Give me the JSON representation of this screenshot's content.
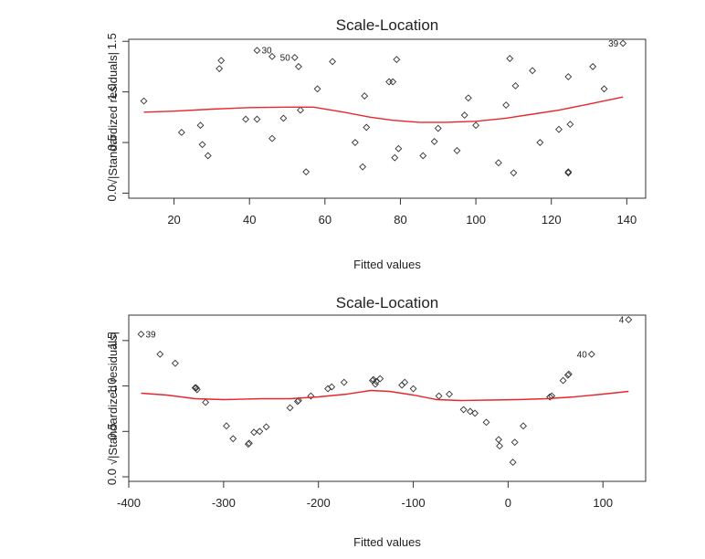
{
  "chart_data": [
    {
      "type": "scatter",
      "title": "Scale-Location",
      "xlabel": "Fitted values",
      "ylabel": "√|Standardized residuals|",
      "xlim": [
        8,
        145
      ],
      "ylim": [
        -0.05,
        1.52
      ],
      "xticks": [
        20,
        40,
        60,
        80,
        100,
        120,
        140
      ],
      "yticks": [
        0.0,
        0.5,
        1.0,
        1.5
      ],
      "xtick_labels": [
        "20",
        "40",
        "60",
        "80",
        "100",
        "120",
        "140"
      ],
      "ytick_labels": [
        "0.0",
        "0.5",
        "1.0",
        "1.5"
      ],
      "colors": {
        "points": "#333333",
        "smooth": "#e8262b",
        "axis": "#333333"
      },
      "points": [
        [
          12,
          0.91
        ],
        [
          22,
          0.6
        ],
        [
          27,
          0.67
        ],
        [
          27.5,
          0.48
        ],
        [
          29,
          0.37
        ],
        [
          32,
          1.23
        ],
        [
          32.5,
          1.31
        ],
        [
          39,
          0.73
        ],
        [
          42,
          0.73
        ],
        [
          42,
          1.41
        ],
        [
          46,
          1.35
        ],
        [
          46,
          0.54
        ],
        [
          49,
          0.74
        ],
        [
          52,
          1.34
        ],
        [
          53,
          1.25
        ],
        [
          53.5,
          0.82
        ],
        [
          55,
          0.21
        ],
        [
          58,
          1.03
        ],
        [
          62,
          1.3
        ],
        [
          68,
          0.5
        ],
        [
          70,
          0.26
        ],
        [
          70.5,
          0.96
        ],
        [
          71,
          0.65
        ],
        [
          77,
          1.1
        ],
        [
          78,
          1.1
        ],
        [
          78.5,
          0.35
        ],
        [
          79,
          1.32
        ],
        [
          79.5,
          0.44
        ],
        [
          86,
          0.37
        ],
        [
          89,
          0.51
        ],
        [
          90,
          0.64
        ],
        [
          95,
          0.42
        ],
        [
          97,
          0.77
        ],
        [
          98,
          0.94
        ],
        [
          100,
          0.67
        ],
        [
          106,
          0.3
        ],
        [
          108,
          0.87
        ],
        [
          109,
          1.33
        ],
        [
          110,
          0.2
        ],
        [
          110.5,
          1.06
        ],
        [
          115,
          1.21
        ],
        [
          117,
          0.5
        ],
        [
          122,
          0.63
        ],
        [
          124.5,
          0.2
        ],
        [
          124.5,
          0.21
        ],
        [
          124.5,
          1.15
        ],
        [
          125,
          0.68
        ],
        [
          131,
          1.25
        ],
        [
          134,
          1.03
        ],
        [
          139,
          1.48
        ]
      ],
      "point_labels": [
        {
          "text": "30",
          "x": 42,
          "y": 1.41,
          "side": "right"
        },
        {
          "text": "50",
          "x": 52,
          "y": 1.34,
          "side": "left"
        },
        {
          "text": "39",
          "x": 139,
          "y": 1.48,
          "side": "left"
        }
      ],
      "smooth": [
        [
          12,
          0.8
        ],
        [
          20,
          0.81
        ],
        [
          30,
          0.83
        ],
        [
          40,
          0.845
        ],
        [
          50,
          0.85
        ],
        [
          57,
          0.85
        ],
        [
          65,
          0.8
        ],
        [
          72,
          0.75
        ],
        [
          78,
          0.72
        ],
        [
          85,
          0.7
        ],
        [
          92,
          0.7
        ],
        [
          100,
          0.71
        ],
        [
          108,
          0.74
        ],
        [
          115,
          0.78
        ],
        [
          122,
          0.82
        ],
        [
          130,
          0.88
        ],
        [
          139,
          0.95
        ]
      ]
    },
    {
      "type": "scatter",
      "title": "Scale-Location",
      "xlabel": "Fitted values",
      "ylabel": "√|Standardized residuals|",
      "xlim": [
        -400,
        145
      ],
      "ylim": [
        -0.05,
        1.78
      ],
      "xticks": [
        -400,
        -300,
        -200,
        -100,
        0,
        100
      ],
      "yticks": [
        0.0,
        0.5,
        1.0,
        1.5
      ],
      "xtick_labels": [
        "-400",
        "-300",
        "-200",
        "-100",
        "0",
        "100"
      ],
      "ytick_labels": [
        "0.0",
        "0.5",
        "1.0",
        "1.5"
      ],
      "colors": {
        "points": "#333333",
        "smooth": "#e8262b",
        "axis": "#333333"
      },
      "points": [
        [
          -387,
          1.57
        ],
        [
          -367,
          1.35
        ],
        [
          -351,
          1.25
        ],
        [
          -330,
          0.98
        ],
        [
          -329,
          0.98
        ],
        [
          -328,
          0.96
        ],
        [
          -319,
          0.82
        ],
        [
          -297,
          0.56
        ],
        [
          -290,
          0.42
        ],
        [
          -274,
          0.36
        ],
        [
          -273,
          0.37
        ],
        [
          -268,
          0.49
        ],
        [
          -262,
          0.5
        ],
        [
          -255,
          0.55
        ],
        [
          -230,
          0.76
        ],
        [
          -222,
          0.83
        ],
        [
          -221,
          0.84
        ],
        [
          -208,
          0.89
        ],
        [
          -190,
          0.97
        ],
        [
          -186,
          0.99
        ],
        [
          -173,
          1.04
        ],
        [
          -143,
          1.06
        ],
        [
          -142,
          1.07
        ],
        [
          -140,
          1.02
        ],
        [
          -139,
          1.05
        ],
        [
          -135,
          1.08
        ],
        [
          -112,
          1.01
        ],
        [
          -109,
          1.04
        ],
        [
          -100,
          0.97
        ],
        [
          -73,
          0.89
        ],
        [
          -62,
          0.91
        ],
        [
          -47,
          0.74
        ],
        [
          -40,
          0.72
        ],
        [
          -35,
          0.7
        ],
        [
          -23,
          0.6
        ],
        [
          -10,
          0.41
        ],
        [
          -9,
          0.34
        ],
        [
          5,
          0.16
        ],
        [
          7,
          0.38
        ],
        [
          16,
          0.56
        ],
        [
          44,
          0.88
        ],
        [
          46,
          0.89
        ],
        [
          58,
          1.06
        ],
        [
          63,
          1.12
        ],
        [
          64,
          1.13
        ],
        [
          88,
          1.35
        ],
        [
          127,
          1.73
        ]
      ],
      "point_labels": [
        {
          "text": "39",
          "x": -387,
          "y": 1.57,
          "side": "right"
        },
        {
          "text": "40",
          "x": 88,
          "y": 1.35,
          "side": "left"
        },
        {
          "text": "4",
          "x": 127,
          "y": 1.73,
          "side": "left"
        }
      ],
      "smooth": [
        [
          -387,
          0.92
        ],
        [
          -360,
          0.9
        ],
        [
          -330,
          0.86
        ],
        [
          -300,
          0.85
        ],
        [
          -260,
          0.86
        ],
        [
          -230,
          0.86
        ],
        [
          -200,
          0.88
        ],
        [
          -170,
          0.91
        ],
        [
          -145,
          0.95
        ],
        [
          -125,
          0.94
        ],
        [
          -100,
          0.9
        ],
        [
          -75,
          0.85
        ],
        [
          -50,
          0.84
        ],
        [
          -20,
          0.845
        ],
        [
          10,
          0.85
        ],
        [
          40,
          0.86
        ],
        [
          70,
          0.88
        ],
        [
          100,
          0.91
        ],
        [
          127,
          0.94
        ]
      ]
    }
  ]
}
